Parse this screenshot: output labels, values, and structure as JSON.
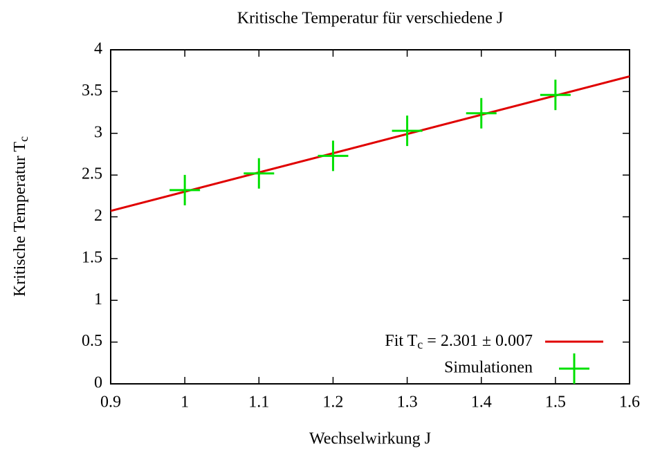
{
  "chart_data": {
    "type": "scatter",
    "title": "Kritische Temperatur für verschiedene J",
    "xlabel": "Wechselwirkung J",
    "ylabel": "Kritische Temperatur Tc",
    "xlim": [
      0.9,
      1.6
    ],
    "xticks": [
      0.9,
      1,
      1.1,
      1.2,
      1.3,
      1.4,
      1.5,
      1.6
    ],
    "ylim": [
      0,
      4
    ],
    "yticks": [
      0,
      0.5,
      1,
      1.5,
      2,
      2.5,
      3,
      3.5,
      4
    ],
    "legend": "lower right",
    "series": [
      {
        "name": "Fit Tc = 2.301 ± 0.007",
        "color": "#e00000",
        "style": "line",
        "x": [
          0.9,
          1.6
        ],
        "values": [
          2.071,
          3.682
        ]
      },
      {
        "name": "Simulationen",
        "color": "#00e000",
        "style": "points",
        "x": [
          1,
          1.1,
          1.2,
          1.3,
          1.4,
          1.5
        ],
        "values": [
          2.32,
          2.52,
          2.73,
          3.03,
          3.24,
          3.46
        ]
      }
    ]
  }
}
